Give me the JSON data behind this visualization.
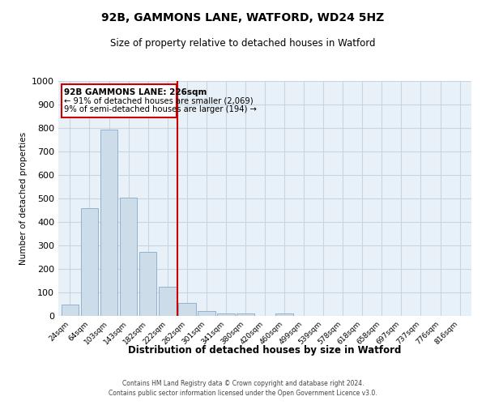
{
  "title": "92B, GAMMONS LANE, WATFORD, WD24 5HZ",
  "subtitle": "Size of property relative to detached houses in Watford",
  "xlabel": "Distribution of detached houses by size in Watford",
  "ylabel": "Number of detached properties",
  "bar_labels": [
    "24sqm",
    "64sqm",
    "103sqm",
    "143sqm",
    "182sqm",
    "222sqm",
    "262sqm",
    "301sqm",
    "341sqm",
    "380sqm",
    "420sqm",
    "460sqm",
    "499sqm",
    "539sqm",
    "578sqm",
    "618sqm",
    "658sqm",
    "697sqm",
    "737sqm",
    "776sqm",
    "816sqm"
  ],
  "bar_values": [
    50,
    457,
    793,
    503,
    273,
    123,
    55,
    22,
    12,
    10,
    0,
    10,
    0,
    0,
    0,
    0,
    0,
    0,
    0,
    0,
    0
  ],
  "bar_color": "#ccdce8",
  "bar_edge_color": "#88aac8",
  "grid_color": "#c8d4e0",
  "background_color": "#e8f0f8",
  "vline_x": 5.5,
  "vline_color": "#cc0000",
  "annotation_title": "92B GAMMONS LANE: 226sqm",
  "annotation_line1": "← 91% of detached houses are smaller (2,069)",
  "annotation_line2": "9% of semi-detached houses are larger (194) →",
  "annotation_box_color": "#cc0000",
  "footer_line1": "Contains HM Land Registry data © Crown copyright and database right 2024.",
  "footer_line2": "Contains public sector information licensed under the Open Government Licence v3.0.",
  "ylim": [
    0,
    1000
  ],
  "yticks": [
    0,
    100,
    200,
    300,
    400,
    500,
    600,
    700,
    800,
    900,
    1000
  ]
}
